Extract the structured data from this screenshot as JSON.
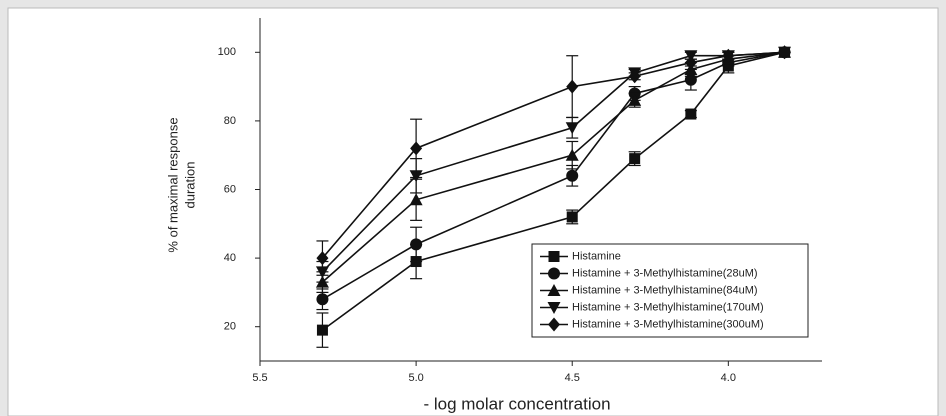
{
  "chart_data": {
    "type": "line",
    "xlabel": "- log molar concentration",
    "ylabel": [
      "% of maximal response",
      "duration"
    ],
    "x": [
      5.3,
      5.0,
      4.5,
      4.3,
      4.12,
      4.0,
      3.82
    ],
    "xlim": [
      5.5,
      3.7
    ],
    "xticks": [
      5.5,
      {
        "value": 5,
        "label": "5.0"
      },
      4.5,
      {
        "value": 4,
        "label": "4.0"
      }
    ],
    "ylim": [
      10,
      110
    ],
    "yticks": [
      20,
      40,
      60,
      80,
      100
    ],
    "legend": "lower right",
    "series": [
      {
        "name": "Histamine",
        "color": "#111111",
        "marker": "square",
        "values": [
          19,
          39,
          52,
          69,
          82,
          96,
          100
        ],
        "errors": [
          5,
          5,
          2,
          2,
          1,
          2,
          0
        ]
      },
      {
        "name": "Histamine + 3-Methylhistamine(28uM)",
        "color": "#111111",
        "marker": "circle",
        "values": [
          28,
          44,
          64,
          88,
          92,
          97,
          100
        ],
        "errors": [
          3,
          5,
          3,
          2,
          3,
          1,
          0
        ]
      },
      {
        "name": "Histamine + 3-Methylhistamine(84uM)",
        "color": "#111111",
        "marker": "triangle",
        "values": [
          33,
          57,
          70,
          86,
          95,
          98,
          100
        ],
        "errors": [
          3,
          6,
          4,
          2,
          2,
          1,
          0
        ]
      },
      {
        "name": "Histamine + 3-Methylhistamine(170uM)",
        "color": "#111111",
        "marker": "triangle-down",
        "values": [
          36,
          64,
          78,
          94,
          99,
          99,
          100
        ],
        "errors": [
          3,
          5,
          3,
          1,
          1,
          1,
          0
        ]
      },
      {
        "name": "Histamine + 3-Methylhistamine(300uM)",
        "color": "#111111",
        "marker": "diamond",
        "values": [
          40,
          72,
          90,
          93,
          97,
          99,
          100
        ],
        "errors": [
          5,
          8.5,
          9,
          1,
          1,
          1,
          0
        ]
      }
    ]
  }
}
